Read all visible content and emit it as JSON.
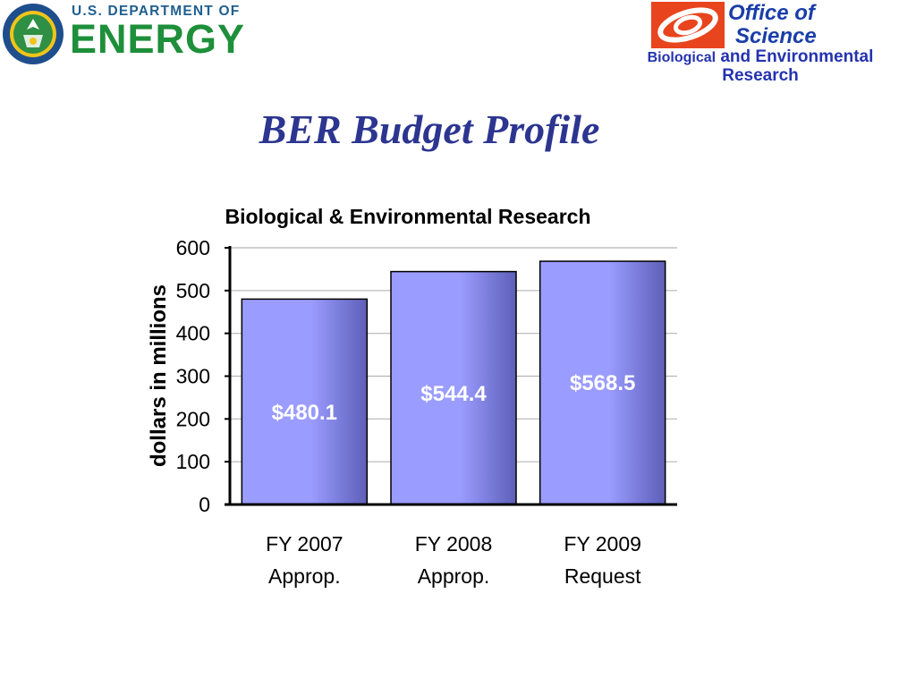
{
  "header": {
    "doe_logo": {
      "department_text": "U.S. DEPARTMENT OF",
      "energy_text": "ENERGY",
      "seal_text": "DEPARTMENT OF ENERGY · UNITED STATES OF AMERICA"
    },
    "office_logo": {
      "title_line1": "Office of",
      "title_line2": "Science",
      "subtitle_part1": "Biological",
      "subtitle_part2": "and Environmental",
      "subtitle_line2": "Research"
    }
  },
  "slide": {
    "title": "BER Budget Profile"
  },
  "colors": {
    "bar_fill_light": "#9b9cff",
    "bar_fill_dark": "#5d5fb8",
    "bar_label": "#ffffff",
    "gridline": "#b5b5b5",
    "axis": "#000000",
    "title": "#2c3590",
    "doe_green": "#1e8f3a",
    "office_blue": "#1a3ea8"
  },
  "chart_data": {
    "type": "bar",
    "title": "Biological & Environmental Research",
    "xlabel": "",
    "ylabel": "dollars in millions",
    "ylim": [
      0,
      600
    ],
    "yticks": [
      0,
      100,
      200,
      300,
      400,
      500,
      600
    ],
    "grid": true,
    "legend": "none",
    "categories": [
      [
        "FY 2007",
        "Approp."
      ],
      [
        "FY 2008",
        "Approp."
      ],
      [
        "FY 2009",
        "Request"
      ]
    ],
    "values": [
      480.1,
      544.4,
      568.5
    ],
    "data_labels": [
      "$480.1",
      "$544.4",
      "$568.5"
    ]
  }
}
